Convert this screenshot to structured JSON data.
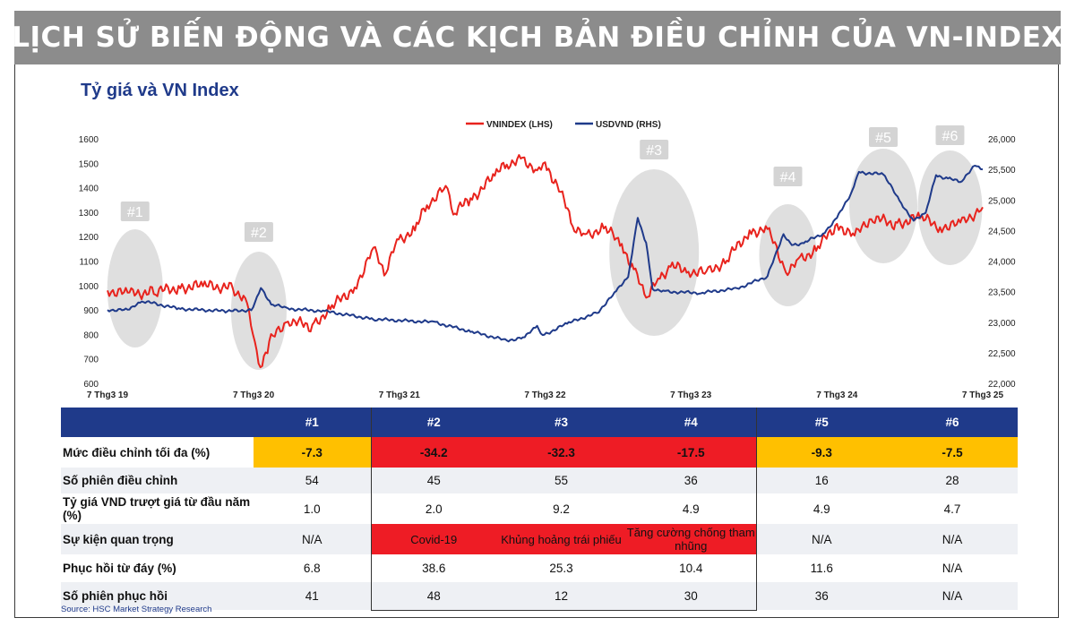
{
  "banner_title": "LỊCH SỬ BIẾN ĐỘNG VÀ CÁC KỊCH BẢN ĐIỀU CHỈNH CỦA VN-INDEX",
  "chart_data": {
    "type": "line",
    "title": "Tỷ giá và VN Index",
    "legend_position": "top-center",
    "x_range": [
      "2019-03-07",
      "2025-03-07"
    ],
    "x_tick_labels": [
      "7 Thg3 19",
      "7 Thg3 20",
      "7 Thg3 21",
      "7 Thg3 22",
      "7 Thg3 23",
      "7 Thg3 24",
      "7 Thg3 25"
    ],
    "y_left": {
      "range": [
        600,
        1600
      ],
      "ticks": [
        600,
        700,
        800,
        900,
        1000,
        1100,
        1200,
        1300,
        1400,
        1500,
        1600
      ]
    },
    "y_right": {
      "range": [
        22000,
        26000
      ],
      "ticks": [
        "22,000",
        "22,500",
        "23,000",
        "23,500",
        "24,000",
        "24,500",
        "25,000",
        "25,500",
        "26,000"
      ],
      "tick_values": [
        22000,
        22500,
        23000,
        23500,
        24000,
        24500,
        25000,
        25500,
        26000
      ]
    },
    "series": [
      {
        "name": "VNINDEX (LHS)",
        "axis": "left",
        "color": "#e8231d",
        "x": [
          "2019-03-07",
          "2019-05-01",
          "2019-07-01",
          "2019-09-01",
          "2019-11-01",
          "2020-01-15",
          "2020-02-15",
          "2020-03-10",
          "2020-03-24",
          "2020-04-15",
          "2020-06-01",
          "2020-08-01",
          "2020-09-15",
          "2020-11-15",
          "2021-01-01",
          "2021-01-28",
          "2021-03-01",
          "2021-04-15",
          "2021-05-15",
          "2021-07-01",
          "2021-07-20",
          "2021-09-01",
          "2021-11-01",
          "2021-12-01",
          "2022-01-05",
          "2022-02-15",
          "2022-03-07",
          "2022-04-15",
          "2022-05-15",
          "2022-06-15",
          "2022-08-01",
          "2022-09-15",
          "2022-10-15",
          "2022-11-15",
          "2022-12-15",
          "2023-01-15",
          "2023-03-01",
          "2023-04-15",
          "2023-06-01",
          "2023-08-01",
          "2023-09-15",
          "2023-10-31",
          "2023-12-01",
          "2024-01-15",
          "2024-03-07",
          "2024-04-20",
          "2024-06-01",
          "2024-08-01",
          "2024-10-01",
          "2024-11-20",
          "2025-01-10",
          "2025-03-07"
        ],
        "values": [
          980,
          965,
          975,
          990,
          1000,
          990,
          940,
          780,
          660,
          770,
          860,
          830,
          910,
          990,
          1150,
          1050,
          1180,
          1230,
          1330,
          1400,
          1300,
          1350,
          1450,
          1500,
          1510,
          1480,
          1500,
          1380,
          1250,
          1200,
          1240,
          1170,
          1060,
          960,
          1020,
          1080,
          1060,
          1050,
          1100,
          1220,
          1230,
          1060,
          1100,
          1150,
          1250,
          1200,
          1280,
          1250,
          1280,
          1240,
          1250,
          1320
        ]
      },
      {
        "name": "USDVND (RHS)",
        "axis": "right",
        "color": "#1f3a8a",
        "x": [
          "2019-03-07",
          "2019-05-01",
          "2019-06-01",
          "2019-09-01",
          "2020-01-01",
          "2020-03-01",
          "2020-03-25",
          "2020-04-20",
          "2020-06-01",
          "2020-09-01",
          "2021-01-01",
          "2021-06-01",
          "2021-09-01",
          "2021-12-01",
          "2022-01-15",
          "2022-02-15",
          "2022-03-01",
          "2022-05-01",
          "2022-07-15",
          "2022-09-01",
          "2022-10-01",
          "2022-10-25",
          "2022-11-15",
          "2022-12-01",
          "2023-01-01",
          "2023-04-01",
          "2023-07-01",
          "2023-09-15",
          "2023-10-25",
          "2023-11-15",
          "2023-12-15",
          "2024-02-01",
          "2024-03-07",
          "2024-04-10",
          "2024-05-01",
          "2024-07-01",
          "2024-08-15",
          "2024-09-15",
          "2024-10-15",
          "2024-11-10",
          "2024-12-10",
          "2025-01-10",
          "2025-02-15",
          "2025-03-07"
        ],
        "values": [
          23200,
          23200,
          23350,
          23220,
          23180,
          23200,
          23550,
          23300,
          23220,
          23180,
          23050,
          23000,
          22850,
          22700,
          22750,
          22950,
          22780,
          22980,
          23150,
          23500,
          23750,
          24700,
          24300,
          23550,
          23500,
          23480,
          23550,
          23750,
          24450,
          24250,
          24300,
          24450,
          24700,
          25100,
          25450,
          25420,
          24950,
          24650,
          24800,
          25400,
          25350,
          25300,
          25550,
          25500
        ]
      }
    ],
    "annotations": [
      {
        "label": "#1",
        "x": "2019-05-15"
      },
      {
        "label": "#2",
        "x": "2020-03-20"
      },
      {
        "label": "#3",
        "x": "2022-12-05"
      },
      {
        "label": "#4",
        "x": "2023-11-05"
      },
      {
        "label": "#5",
        "x": "2024-07-01"
      },
      {
        "label": "#6",
        "x": "2024-12-15"
      }
    ]
  },
  "table": {
    "headers": [
      "",
      "#1",
      "#2",
      "#3",
      "#4",
      "#5",
      "#6"
    ],
    "rows": [
      {
        "label": "Mức điều chỉnh tối đa (%)",
        "cells": [
          "-7.3",
          "-34.2",
          "-32.3",
          "-17.5",
          "-9.3",
          "-7.5"
        ]
      },
      {
        "label": "Số phiên điều chỉnh",
        "cells": [
          "54",
          "45",
          "55",
          "36",
          "16",
          "28"
        ]
      },
      {
        "label": "Tỷ giá VND trượt giá từ đầu năm (%)",
        "cells": [
          "1.0",
          "2.0",
          "9.2",
          "4.9",
          "4.9",
          "4.7"
        ]
      },
      {
        "label": "Sự kiện quan trọng",
        "cells": [
          "N/A",
          "Covid-19",
          "Khủng hoảng trái phiếu",
          "Tăng cường chống tham nhũng",
          "N/A",
          "N/A"
        ]
      },
      {
        "label": "Phục hồi từ đáy (%)",
        "cells": [
          "6.8",
          "38.6",
          "25.3",
          "10.4",
          "11.6",
          "N/A"
        ]
      },
      {
        "label": "Số phiên phục hồi",
        "cells": [
          "41",
          "48",
          "12",
          "30",
          "36",
          "N/A"
        ]
      }
    ]
  },
  "source": "Source: HSC Market Strategy Research",
  "colors": {
    "banner": "#8c8c8c",
    "navy": "#1f3a8a",
    "red": "#ee1c25",
    "yellow": "#ffc000",
    "ellipse": "#dcdcdc"
  }
}
